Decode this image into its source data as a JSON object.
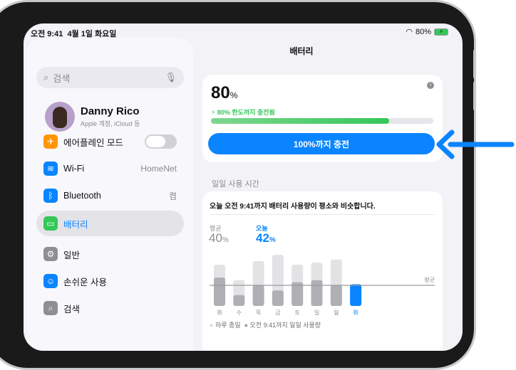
{
  "status": {
    "time": "오전 9:41",
    "date": "4월 1일 화요일",
    "battery": "80%"
  },
  "sidebar": {
    "search_placeholder": "검색",
    "profile": {
      "name": "Danny Rico",
      "subtitle": "Apple 계정, iCloud 등"
    },
    "items": [
      {
        "label": "에어플레인 모드",
        "icon": "airplane-icon",
        "color": "#ff9500",
        "toggle": false
      },
      {
        "label": "Wi-Fi",
        "icon": "wifi-icon",
        "color": "#0a84ff",
        "value": "HomeNet"
      },
      {
        "label": "Bluetooth",
        "icon": "bluetooth-icon",
        "color": "#0a84ff",
        "value": "켬"
      },
      {
        "label": "배터리",
        "icon": "battery-icon",
        "color": "#34c759",
        "selected": true
      },
      {
        "label": "일반",
        "icon": "gear-icon",
        "color": "#8e8e93"
      },
      {
        "label": "손쉬운 사용",
        "icon": "accessibility-icon",
        "color": "#0a84ff"
      },
      {
        "label": "검색",
        "icon": "search-icon",
        "color": "#8e8e93"
      }
    ]
  },
  "main": {
    "title": "배터리",
    "battery": {
      "level": "80",
      "unit": "%",
      "status": "80% 한도까지 충전됨",
      "progress": 80,
      "charge_button": "100%까지 충전"
    },
    "usage": {
      "section": "일일 사용 시간",
      "summary": "오늘 오전 9:41까지 배터리 사용량이 평소와 비슷합니다.",
      "avg_label": "평균",
      "avg_value": "40",
      "today_label": "오늘",
      "today_value": "42",
      "unit": "%",
      "line_label": "평균",
      "legend": [
        "하루 종일",
        "오전 9:41까지 일일 사용량"
      ]
    }
  },
  "chart_data": {
    "type": "bar",
    "categories": [
      "화",
      "수",
      "목",
      "금",
      "토",
      "일",
      "월",
      "화"
    ],
    "series": [
      {
        "name": "하루 종일",
        "values": [
          80,
          50,
          87,
          99,
          80,
          84,
          90,
          null
        ]
      },
      {
        "name": "오전 9:41까지 일일 사용량",
        "values": [
          55,
          21,
          40,
          30,
          46,
          50,
          40,
          42
        ]
      }
    ],
    "average": 40,
    "ylim": [
      0,
      100
    ],
    "highlight_color": "#0a84ff"
  }
}
